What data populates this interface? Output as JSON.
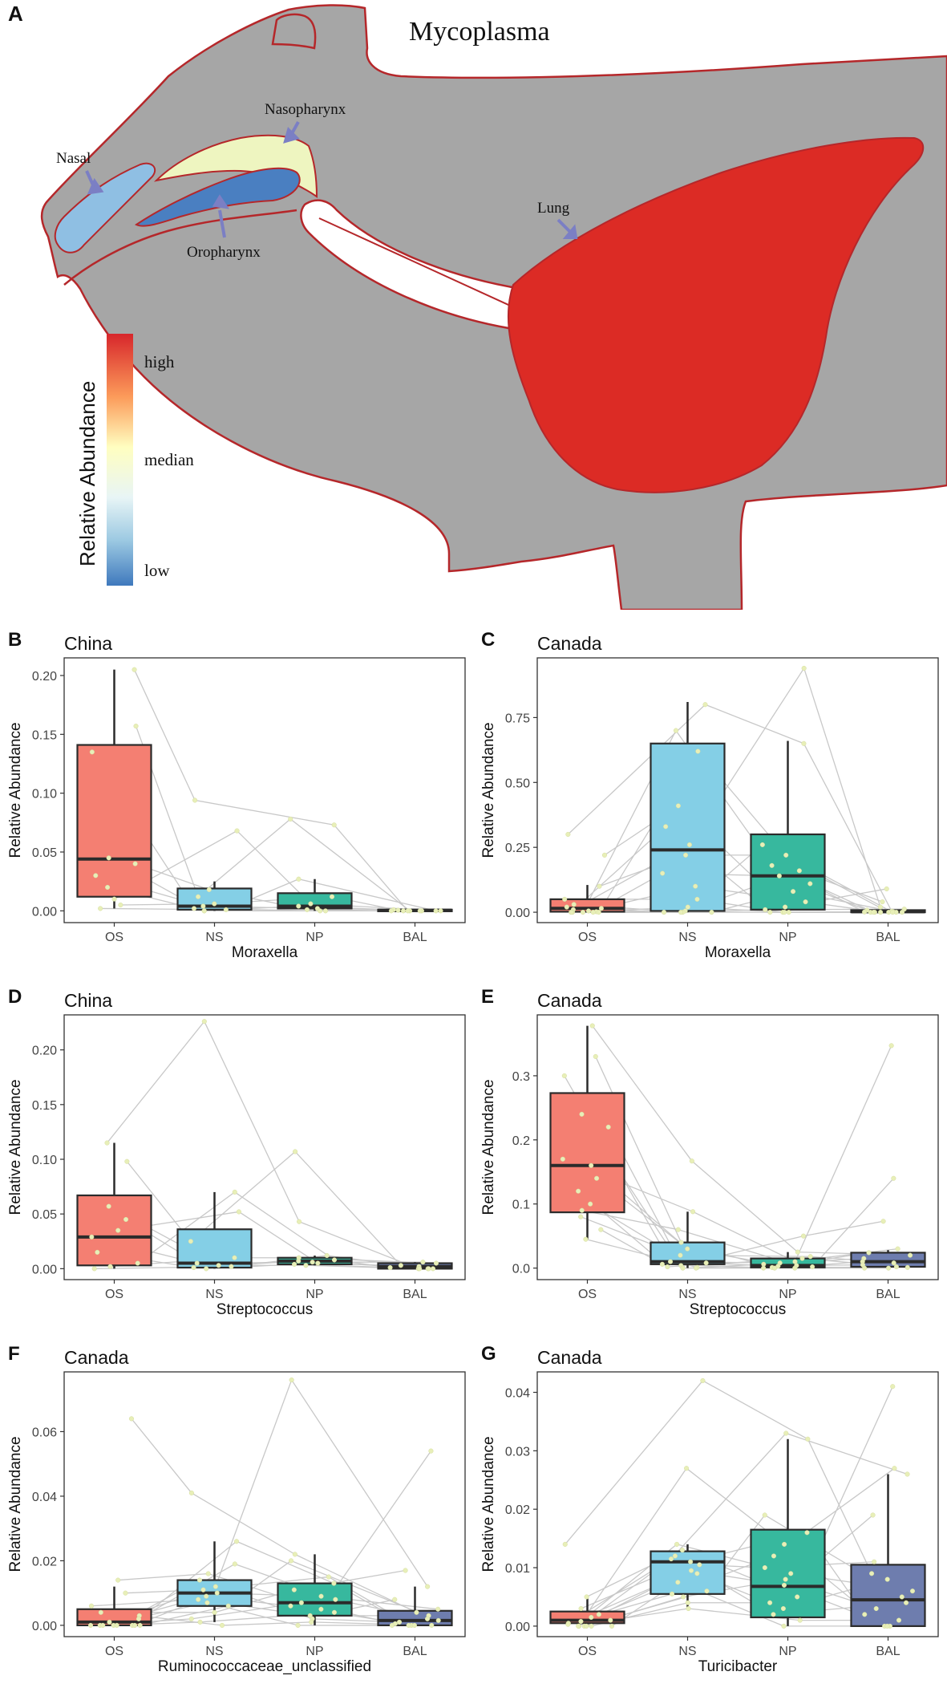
{
  "figure": {
    "panel_a": {
      "letter": "A",
      "title": "Mycoplasma",
      "labels": {
        "nasal": "Nasal",
        "nasopharynx": "Nasopharynx",
        "oropharynx": "Oropharynx",
        "lung": "Lung"
      },
      "legend": {
        "title": "Relative Abundance",
        "high": "high",
        "median": "median",
        "low": "low"
      },
      "colors": {
        "body": "#a6a6a6",
        "outline": "#b5272a",
        "nasal": "#8fbfe3",
        "nasopharynx": "#eef5c0",
        "oropharynx": "#4a7fc1",
        "lung": "#dc2b25",
        "arrow": "#7b7fc4"
      }
    }
  },
  "chart_data": [
    {
      "panel": "B",
      "type": "box",
      "title": "China",
      "xlabel": "Moraxella",
      "ylabel": "Relative Abundance",
      "categories": [
        "OS",
        "NS",
        "NP",
        "BAL"
      ],
      "ylim": [
        -0.01,
        0.215
      ],
      "yticks": [
        0,
        0.05,
        0.1,
        0.15,
        0.2
      ],
      "ytick_labels": [
        "0.00",
        "0.05",
        "0.10",
        "0.15",
        "0.20"
      ],
      "boxes": [
        {
          "q1": 0.012,
          "median": 0.044,
          "q3": 0.141,
          "whisker_low": 0.002,
          "whisker_high": 0.205
        },
        {
          "q1": 0.001,
          "median": 0.004,
          "q3": 0.019,
          "whisker_low": 0.0,
          "whisker_high": 0.025
        },
        {
          "q1": 0.002,
          "median": 0.004,
          "q3": 0.015,
          "whisker_low": 0.0,
          "whisker_high": 0.027
        },
        {
          "q1": 0.0,
          "median": 0.0005,
          "q3": 0.001,
          "whisker_low": 0.0,
          "whisker_high": 0.001
        }
      ],
      "points": [
        [
          0.205,
          0.157,
          0.135,
          0.045,
          0.04,
          0.03,
          0.02,
          0.01,
          0.005,
          0.002
        ],
        [
          0.094,
          0.068,
          0.018,
          0.012,
          0.006,
          0.004,
          0.002,
          0.001,
          0.0,
          0.0
        ],
        [
          0.078,
          0.073,
          0.027,
          0.012,
          0.006,
          0.004,
          0.002,
          0.001,
          0.0,
          0.0
        ],
        [
          0.001,
          0.0005,
          0.0,
          0.0,
          0.0,
          0.0,
          0.0,
          0.0,
          0.0,
          0.0
        ]
      ]
    },
    {
      "panel": "C",
      "type": "box",
      "title": "Canada",
      "xlabel": "Moraxella",
      "ylabel": "Relative Abundance",
      "categories": [
        "OS",
        "NS",
        "NP",
        "BAL"
      ],
      "ylim": [
        -0.04,
        0.98
      ],
      "yticks": [
        0,
        0.25,
        0.5,
        0.75
      ],
      "ytick_labels": [
        "0.00",
        "0.25",
        "0.50",
        "0.75"
      ],
      "boxes": [
        {
          "q1": 0.002,
          "median": 0.015,
          "q3": 0.05,
          "whisker_low": 0.0,
          "whisker_high": 0.105
        },
        {
          "q1": 0.005,
          "median": 0.24,
          "q3": 0.65,
          "whisker_low": 0.0,
          "whisker_high": 0.81
        },
        {
          "q1": 0.01,
          "median": 0.14,
          "q3": 0.3,
          "whisker_low": 0.0,
          "whisker_high": 0.66
        },
        {
          "q1": 0.0,
          "median": 0.002,
          "q3": 0.008,
          "whisker_low": 0.0,
          "whisker_high": 0.012
        }
      ],
      "points": [
        [
          0.3,
          0.22,
          0.1,
          0.05,
          0.03,
          0.02,
          0.015,
          0.01,
          0.005,
          0.002,
          0.0,
          0.0,
          0.0,
          0.0,
          0.0,
          0.0
        ],
        [
          0.8,
          0.7,
          0.62,
          0.41,
          0.33,
          0.26,
          0.22,
          0.15,
          0.1,
          0.05,
          0.02,
          0.005,
          0.0,
          0.0,
          0.0,
          0.0
        ],
        [
          0.94,
          0.65,
          0.26,
          0.22,
          0.18,
          0.16,
          0.14,
          0.11,
          0.08,
          0.04,
          0.02,
          0.01,
          0.0,
          0.0,
          0.0,
          0.0
        ],
        [
          0.09,
          0.04,
          0.02,
          0.012,
          0.008,
          0.004,
          0.002,
          0.001,
          0.0,
          0.0,
          0.0,
          0.0,
          0.0,
          0.0,
          0.0,
          0.0
        ]
      ]
    },
    {
      "panel": "D",
      "type": "box",
      "title": "China",
      "xlabel": "Streptococcus",
      "ylabel": "Relative Abundance",
      "categories": [
        "OS",
        "NS",
        "NP",
        "BAL"
      ],
      "ylim": [
        -0.01,
        0.232
      ],
      "yticks": [
        0,
        0.05,
        0.1,
        0.15,
        0.2
      ],
      "ytick_labels": [
        "0.00",
        "0.05",
        "0.10",
        "0.15",
        "0.20"
      ],
      "boxes": [
        {
          "q1": 0.003,
          "median": 0.029,
          "q3": 0.067,
          "whisker_low": 0.0,
          "whisker_high": 0.115
        },
        {
          "q1": 0.001,
          "median": 0.005,
          "q3": 0.036,
          "whisker_low": 0.0,
          "whisker_high": 0.07
        },
        {
          "q1": 0.004,
          "median": 0.007,
          "q3": 0.01,
          "whisker_low": 0.003,
          "whisker_high": 0.012
        },
        {
          "q1": 0.0,
          "median": 0.002,
          "q3": 0.005,
          "whisker_low": 0.0,
          "whisker_high": 0.006
        }
      ],
      "points": [
        [
          0.115,
          0.098,
          0.057,
          0.045,
          0.035,
          0.029,
          0.015,
          0.005,
          0.002,
          0.0
        ],
        [
          0.226,
          0.07,
          0.052,
          0.025,
          0.01,
          0.005,
          0.003,
          0.002,
          0.001,
          0.0
        ],
        [
          0.107,
          0.043,
          0.012,
          0.01,
          0.008,
          0.007,
          0.006,
          0.005,
          0.004,
          0.003
        ],
        [
          0.006,
          0.005,
          0.003,
          0.002,
          0.001,
          0.0,
          0.0,
          0.0,
          0.0,
          0.0
        ]
      ]
    },
    {
      "panel": "E",
      "type": "box",
      "title": "Canada",
      "xlabel": "Streptococcus",
      "ylabel": "Relative Abundance",
      "categories": [
        "OS",
        "NS",
        "NP",
        "BAL"
      ],
      "ylim": [
        -0.018,
        0.395
      ],
      "yticks": [
        0,
        0.1,
        0.2,
        0.3
      ],
      "ytick_labels": [
        "0.0",
        "0.1",
        "0.2",
        "0.3"
      ],
      "boxes": [
        {
          "q1": 0.087,
          "median": 0.16,
          "q3": 0.273,
          "whisker_low": 0.045,
          "whisker_high": 0.378
        },
        {
          "q1": 0.006,
          "median": 0.01,
          "q3": 0.04,
          "whisker_low": 0.0,
          "whisker_high": 0.088
        },
        {
          "q1": 0.001,
          "median": 0.004,
          "q3": 0.015,
          "whisker_low": 0.0,
          "whisker_high": 0.025
        },
        {
          "q1": 0.002,
          "median": 0.01,
          "q3": 0.024,
          "whisker_low": 0.0,
          "whisker_high": 0.028
        }
      ],
      "points": [
        [
          0.378,
          0.33,
          0.3,
          0.24,
          0.22,
          0.17,
          0.16,
          0.14,
          0.12,
          0.1,
          0.09,
          0.08,
          0.06,
          0.045
        ],
        [
          0.167,
          0.088,
          0.06,
          0.04,
          0.03,
          0.02,
          0.01,
          0.008,
          0.006,
          0.004,
          0.002,
          0.001,
          0.0,
          0.0
        ],
        [
          0.05,
          0.025,
          0.018,
          0.015,
          0.01,
          0.008,
          0.006,
          0.004,
          0.003,
          0.002,
          0.001,
          0.0,
          0.0,
          0.0
        ],
        [
          0.347,
          0.14,
          0.073,
          0.03,
          0.024,
          0.02,
          0.015,
          0.01,
          0.008,
          0.005,
          0.002,
          0.001,
          0.0,
          0.0
        ]
      ]
    },
    {
      "panel": "F",
      "type": "box",
      "title": "Canada",
      "xlabel": "Ruminococcaceae_unclassified",
      "ylabel": "Relative Abundance",
      "categories": [
        "OS",
        "NS",
        "NP",
        "BAL"
      ],
      "ylim": [
        -0.0035,
        0.0785
      ],
      "yticks": [
        0,
        0.02,
        0.04,
        0.06
      ],
      "ytick_labels": [
        "0.00",
        "0.02",
        "0.04",
        "0.06"
      ],
      "boxes": [
        {
          "q1": 0.0,
          "median": 0.001,
          "q3": 0.005,
          "whisker_low": 0.0,
          "whisker_high": 0.012
        },
        {
          "q1": 0.006,
          "median": 0.01,
          "q3": 0.014,
          "whisker_low": 0.001,
          "whisker_high": 0.026
        },
        {
          "q1": 0.003,
          "median": 0.007,
          "q3": 0.013,
          "whisker_low": 0.0,
          "whisker_high": 0.022
        },
        {
          "q1": 0.0,
          "median": 0.0015,
          "q3": 0.0045,
          "whisker_low": 0.0,
          "whisker_high": 0.012
        }
      ],
      "points": [
        [
          0.064,
          0.014,
          0.01,
          0.006,
          0.004,
          0.003,
          0.002,
          0.001,
          0.0,
          0.0,
          0.0,
          0.0,
          0.0,
          0.0,
          0.0,
          0.0
        ],
        [
          0.041,
          0.026,
          0.019,
          0.016,
          0.014,
          0.012,
          0.011,
          0.01,
          0.009,
          0.008,
          0.007,
          0.006,
          0.004,
          0.002,
          0.001,
          0.0
        ],
        [
          0.076,
          0.022,
          0.02,
          0.015,
          0.013,
          0.011,
          0.009,
          0.008,
          0.007,
          0.006,
          0.005,
          0.004,
          0.003,
          0.002,
          0.001,
          0.0
        ],
        [
          0.054,
          0.017,
          0.012,
          0.008,
          0.005,
          0.004,
          0.003,
          0.002,
          0.0015,
          0.001,
          0.0005,
          0.0,
          0.0,
          0.0,
          0.0,
          0.0
        ]
      ]
    },
    {
      "panel": "G",
      "type": "box",
      "title": "Canada",
      "xlabel": "Turicibacter",
      "ylabel": "Relative Abundance",
      "categories": [
        "OS",
        "NS",
        "NP",
        "BAL"
      ],
      "ylim": [
        -0.0018,
        0.0435
      ],
      "yticks": [
        0,
        0.01,
        0.02,
        0.03,
        0.04
      ],
      "ytick_labels": [
        "0.00",
        "0.01",
        "0.02",
        "0.03",
        "0.04"
      ],
      "boxes": [
        {
          "q1": 0.0005,
          "median": 0.001,
          "q3": 0.0025,
          "whisker_low": 0.0,
          "whisker_high": 0.005
        },
        {
          "q1": 0.0055,
          "median": 0.011,
          "q3": 0.0128,
          "whisker_low": 0.003,
          "whisker_high": 0.014
        },
        {
          "q1": 0.0015,
          "median": 0.0068,
          "q3": 0.0165,
          "whisker_low": 0.0,
          "whisker_high": 0.032
        },
        {
          "q1": 0.0,
          "median": 0.0045,
          "q3": 0.0105,
          "whisker_low": 0.0,
          "whisker_high": 0.026
        }
      ],
      "points": [
        [
          0.014,
          0.005,
          0.003,
          0.002,
          0.0015,
          0.001,
          0.0008,
          0.0005,
          0.0003,
          0.0,
          0.0,
          0.0,
          0.0,
          0.0,
          0.0,
          0.0
        ],
        [
          0.042,
          0.027,
          0.014,
          0.013,
          0.012,
          0.0115,
          0.011,
          0.0105,
          0.0095,
          0.009,
          0.0075,
          0.006,
          0.0055,
          0.005,
          0.004,
          0.003
        ],
        [
          0.033,
          0.032,
          0.019,
          0.016,
          0.014,
          0.012,
          0.01,
          0.009,
          0.008,
          0.007,
          0.005,
          0.004,
          0.003,
          0.002,
          0.001,
          0.0
        ],
        [
          0.041,
          0.027,
          0.026,
          0.019,
          0.011,
          0.009,
          0.008,
          0.006,
          0.005,
          0.004,
          0.003,
          0.002,
          0.001,
          0.0,
          0.0,
          0.0
        ]
      ]
    }
  ],
  "box_colors": [
    "#f47f72",
    "#84cfe6",
    "#37b89e",
    "#6e7dae"
  ],
  "point_color": "#e8efb8",
  "line_color": "#c8c8c8"
}
